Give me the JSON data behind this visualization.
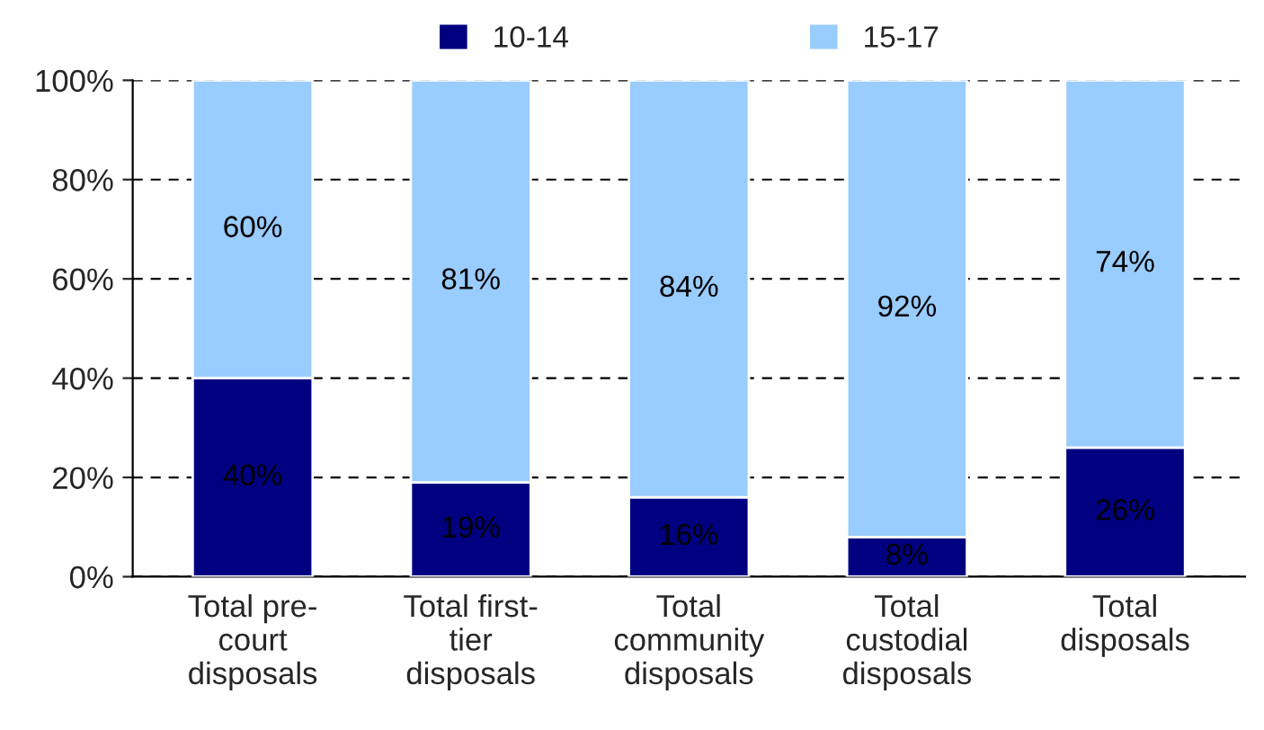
{
  "chart_data": {
    "type": "bar",
    "stacked": true,
    "categories": [
      "Total pre-\ncourt\ndisposals",
      "Total first-\ntier\ndisposals",
      "Total\ncommunity\ndisposals",
      "Total\ncustodial\ndisposals",
      "Total\ndisposals"
    ],
    "series": [
      {
        "name": "10-14",
        "color": "#000080",
        "values": [
          40,
          19,
          16,
          8,
          26
        ],
        "value_labels": [
          "40%",
          "19%",
          "16%",
          "8%",
          "26%"
        ]
      },
      {
        "name": "15-17",
        "color": "#99ccff",
        "values": [
          60,
          81,
          84,
          92,
          74
        ],
        "value_labels": [
          "60%",
          "81%",
          "84%",
          "92%",
          "74%"
        ]
      }
    ],
    "ylim": [
      0,
      100
    ],
    "yticks": [
      {
        "value": 0,
        "label": "0%"
      },
      {
        "value": 20,
        "label": "20%"
      },
      {
        "value": 40,
        "label": "40%"
      },
      {
        "value": 60,
        "label": "60%"
      },
      {
        "value": 80,
        "label": "80%"
      },
      {
        "value": 100,
        "label": "100%"
      }
    ],
    "grid": "y",
    "legend": "top"
  }
}
